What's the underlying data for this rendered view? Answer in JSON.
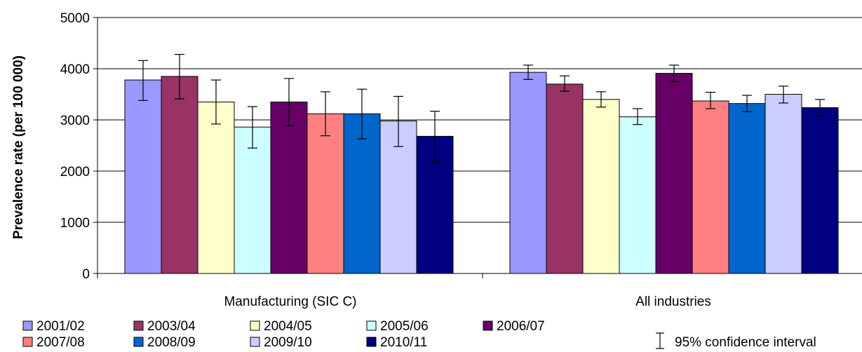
{
  "chart_data": {
    "type": "bar",
    "title": "",
    "xlabel": "",
    "ylabel": "Prevalence rate (per 100 000)",
    "ylim": [
      0,
      5000
    ],
    "yticks": [
      0,
      1000,
      2000,
      3000,
      4000,
      5000
    ],
    "grid": true,
    "legend_position": "bottom",
    "categories": [
      "Manufacturing (SIC C)",
      "All industries"
    ],
    "series": [
      {
        "name": "2001/02",
        "color": "#9999ff",
        "values": [
          3780,
          3930
        ],
        "ci_low": [
          3380,
          3790
        ],
        "ci_high": [
          4160,
          4070
        ]
      },
      {
        "name": "2003/04",
        "color": "#993366",
        "values": [
          3850,
          3700
        ],
        "ci_low": [
          3410,
          3560
        ],
        "ci_high": [
          4280,
          3860
        ]
      },
      {
        "name": "2004/05",
        "color": "#ffffcc",
        "values": [
          3350,
          3400
        ],
        "ci_low": [
          2920,
          3250
        ],
        "ci_high": [
          3780,
          3550
        ]
      },
      {
        "name": "2005/06",
        "color": "#ccffff",
        "values": [
          2860,
          3060
        ],
        "ci_low": [
          2450,
          2910
        ],
        "ci_high": [
          3260,
          3220
        ]
      },
      {
        "name": "2006/07",
        "color": "#660066",
        "values": [
          3350,
          3910
        ],
        "ci_low": [
          2880,
          3750
        ],
        "ci_high": [
          3810,
          4070
        ]
      },
      {
        "name": "2007/08",
        "color": "#ff8080",
        "values": [
          3120,
          3370
        ],
        "ci_low": [
          2690,
          3220
        ],
        "ci_high": [
          3550,
          3540
        ]
      },
      {
        "name": "2008/09",
        "color": "#0066cc",
        "values": [
          3120,
          3320
        ],
        "ci_low": [
          2630,
          3160
        ],
        "ci_high": [
          3600,
          3480
        ]
      },
      {
        "name": "2009/10",
        "color": "#ccccff",
        "values": [
          2980,
          3500
        ],
        "ci_low": [
          2480,
          3330
        ],
        "ci_high": [
          3460,
          3660
        ]
      },
      {
        "name": "2010/11",
        "color": "#000080",
        "values": [
          2680,
          3240
        ],
        "ci_low": [
          2170,
          3080
        ],
        "ci_high": [
          3170,
          3400
        ]
      }
    ],
    "ci_legend": "95% confidence interval"
  }
}
